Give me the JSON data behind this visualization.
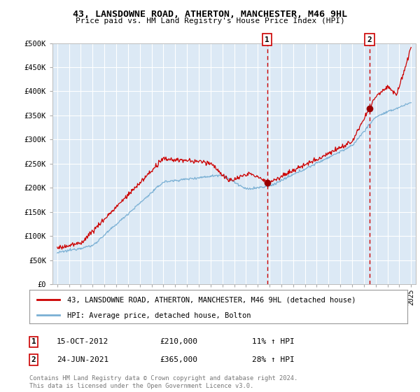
{
  "title": "43, LANSDOWNE ROAD, ATHERTON, MANCHESTER, M46 9HL",
  "subtitle": "Price paid vs. HM Land Registry's House Price Index (HPI)",
  "ylim": [
    0,
    500000
  ],
  "yticks": [
    0,
    50000,
    100000,
    150000,
    200000,
    250000,
    300000,
    350000,
    400000,
    450000,
    500000
  ],
  "ytick_labels": [
    "£0",
    "£50K",
    "£100K",
    "£150K",
    "£200K",
    "£250K",
    "£300K",
    "£350K",
    "£400K",
    "£450K",
    "£500K"
  ],
  "plot_bg": "#dce9f5",
  "fig_bg": "#ffffff",
  "grid_color": "#ffffff",
  "legend_line1": "43, LANSDOWNE ROAD, ATHERTON, MANCHESTER, M46 9HL (detached house)",
  "legend_line2": "HPI: Average price, detached house, Bolton",
  "red_line_color": "#cc0000",
  "blue_line_color": "#7ab0d4",
  "marker1_x": 2012.79,
  "marker1_y": 210000,
  "marker2_x": 2021.48,
  "marker2_y": 365000,
  "annotation1": [
    "1",
    "15-OCT-2012",
    "£210,000",
    "11% ↑ HPI"
  ],
  "annotation2": [
    "2",
    "24-JUN-2021",
    "£365,000",
    "28% ↑ HPI"
  ],
  "footer": "Contains HM Land Registry data © Crown copyright and database right 2024.\nThis data is licensed under the Open Government Licence v3.0.",
  "xmin": 1995,
  "xmax": 2025
}
